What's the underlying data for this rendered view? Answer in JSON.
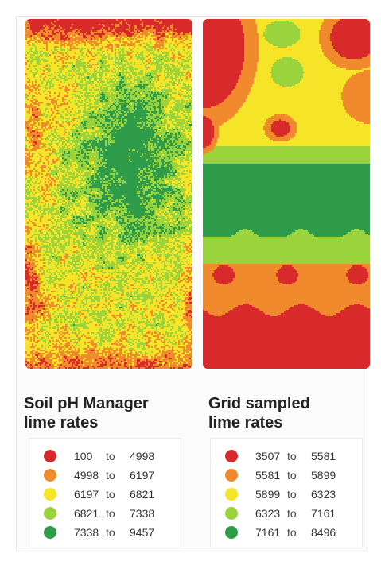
{
  "colors": {
    "red": "#d82a2a",
    "orange": "#f08a2c",
    "yellow": "#f5e428",
    "light_green": "#9ad33c",
    "dark_green": "#2f9c4c"
  },
  "maps": [
    {
      "title": "Soil pH Manager lime rates",
      "title_line1": "Soil pH Manager",
      "title_line2": "lime rates",
      "legend": [
        {
          "lo": "100",
          "to": "to",
          "hi": "4998",
          "color": "#d82a2a"
        },
        {
          "lo": "4998",
          "to": "to",
          "hi": "6197",
          "color": "#f08a2c"
        },
        {
          "lo": "6197",
          "to": "to",
          "hi": "6821",
          "color": "#f5e428"
        },
        {
          "lo": "6821",
          "to": "to",
          "hi": "7338",
          "color": "#9ad33c"
        },
        {
          "lo": "7338",
          "to": "to",
          "hi": "9457",
          "color": "#2f9c4c"
        }
      ]
    },
    {
      "title": "Grid sampled lime rates",
      "title_line1": "Grid sampled",
      "title_line2": "lime rates",
      "legend": [
        {
          "lo": "3507",
          "to": "to",
          "hi": "5581",
          "color": "#d82a2a"
        },
        {
          "lo": "5581",
          "to": "to",
          "hi": "5899",
          "color": "#f08a2c"
        },
        {
          "lo": "5899",
          "to": "to",
          "hi": "6323",
          "color": "#f5e428"
        },
        {
          "lo": "6323",
          "to": "to",
          "hi": "7161",
          "color": "#9ad33c"
        },
        {
          "lo": "7161",
          "to": "to",
          "hi": "8496",
          "color": "#2f9c4c"
        }
      ]
    }
  ]
}
